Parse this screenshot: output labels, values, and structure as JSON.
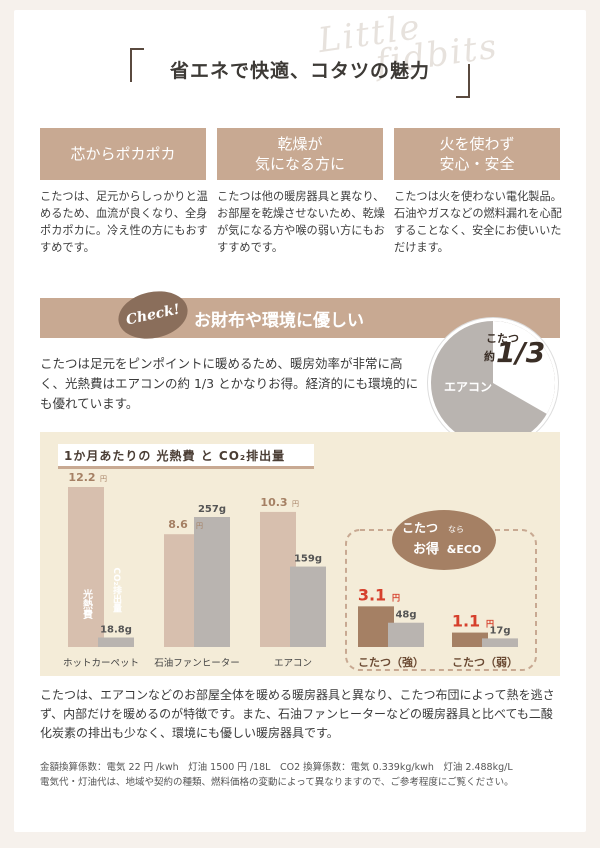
{
  "brand": {
    "watermark_line1": "Little",
    "watermark_line2": "fidbits"
  },
  "title": "省エネで快適、コタツの魅力",
  "features": [
    {
      "heading": "芯からポカポカ",
      "body": "こたつは、足元からしっかりと温めるため、血流が良くなり、全身ポカポカに。冷え性の方にもおすすめです。"
    },
    {
      "heading": "乾燥が\n気になる方に",
      "body": "こたつは他の暖房器具と異なり、お部屋を乾燥させないため、乾燥が気になる方や喉の弱い方にもおすすめです。"
    },
    {
      "heading": "火を使わず\n安心・安全",
      "body": "こたつは火を使わない電化製品。石油やガスなどの燃料漏れを心配することなく、安全にお使いいただけます。"
    }
  ],
  "check": {
    "badge": "Check!",
    "title": "お財布や環境に優しい",
    "text": "こたつは足元をピンポイントに暖めるため、暖房効率が非常に高く、光熱費はエアコンの約 1/3 とかなりお得。経済的にも環境的にも優れています。",
    "circle": {
      "tag": "こたつ",
      "approx": "約",
      "fraction": "1/3",
      "other": "エアコン",
      "share": 0.333
    }
  },
  "colors": {
    "accent": "#c8a992",
    "dark_accent": "#a58064",
    "gray": "#b9b4b0",
    "panel": "#f4ecd8",
    "red": "#d6402c"
  },
  "chart_data": {
    "type": "bar",
    "title": "1か月あたりの 光熱費 と CO₂排出量",
    "categories": [
      "ホットカーペット",
      "石油ファンヒーター",
      "エアコン",
      "こたつ（強）",
      "こたつ（弱）"
    ],
    "series": [
      {
        "name": "光熱費",
        "unit": "円",
        "values": [
          12.2,
          8.6,
          10.3,
          3.1,
          1.1
        ]
      },
      {
        "name": "CO₂排出量",
        "unit": "g",
        "values": [
          18.8,
          257,
          159,
          48,
          17
        ]
      }
    ],
    "value_labels_cost": [
      "12.2",
      "8.6",
      "10.3",
      "3.1",
      "1.1"
    ],
    "value_labels_co2": [
      "18.8g",
      "257g",
      "159g",
      "48g",
      "17g"
    ],
    "yen": "円",
    "bar_text_cost": "光熱費",
    "bar_text_co2": "CO₂排出量",
    "highlight": {
      "text1": "こたつ",
      "text2": "なら",
      "text3": "お得",
      "text4": "&ECO"
    }
  },
  "footer": {
    "text": "こたつは、エアコンなどのお部屋全体を暖める暖房器具と異なり、こたつ布団によって熱を逃さず、内部だけを暖めるのが特徴です。また、石油ファンヒーターなどの暖房器具と比べても二酸化炭素の排出も少なく、環境にも優しい暖房器具です。",
    "note1": "金額換算係数：電気 22 円 /kwh　灯油 1500 円 /18L　CO2 換算係数：電気 0.339kg/kwh　灯油 2.488kg/L",
    "note2": "電気代・灯油代は、地域や契約の種類、燃料価格の変動によって異なりますので、ご参考程度にご覧ください。"
  }
}
